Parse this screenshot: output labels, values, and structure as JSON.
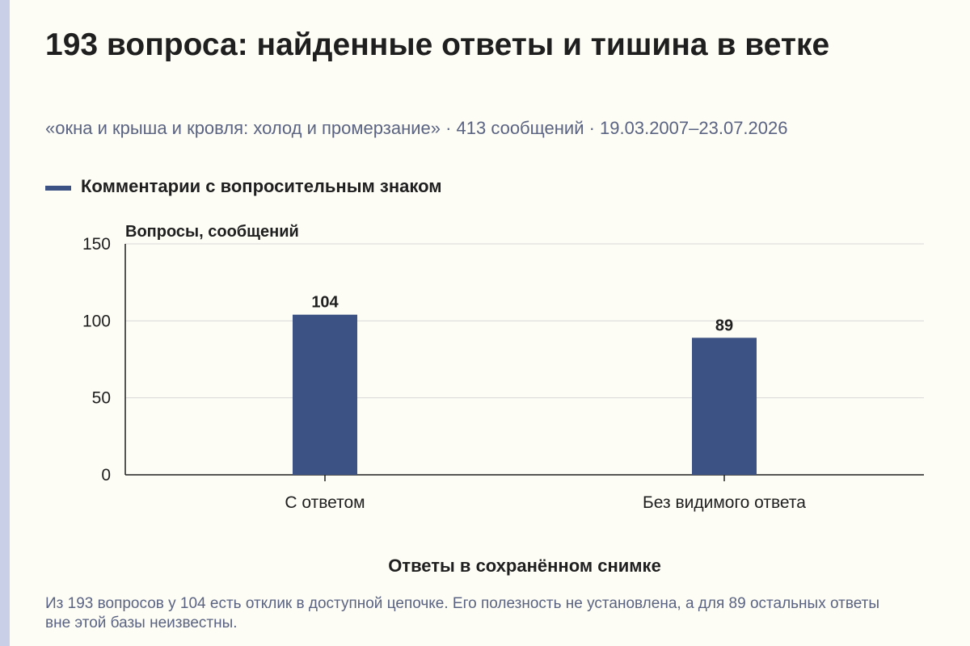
{
  "header": {
    "title": "193 вопроса: найденные ответы и тишина в ветке",
    "subtitle": "«окна и крыша и кровля: холод и промерзание» · 413 сообщений · 19.03.2007–23.07.2026"
  },
  "legend": {
    "label": "Комментарии с вопросительным знаком"
  },
  "caption": "Из 193 вопросов у 104 есть отклик в доступной цепочке. Его полезность не установлена, а для 89 остальных ответы вне этой базы неизвестны.",
  "colors": {
    "bar": "#3d5284",
    "grid": "#d9d9d9",
    "axis": "#1f1f1f"
  },
  "chart_data": {
    "type": "bar",
    "categories": [
      "С ответом",
      "Без видимого ответа"
    ],
    "series": [
      {
        "name": "Комментарии с вопросительным знаком",
        "values": [
          104,
          89
        ]
      }
    ],
    "ylabel": "Вопросы, сообщений",
    "xlabel": "Ответы в сохранённом снимке",
    "ylim": [
      0,
      150
    ],
    "yticks": [
      0,
      50,
      100,
      150
    ],
    "grid": true,
    "legend_position": "top-left"
  }
}
